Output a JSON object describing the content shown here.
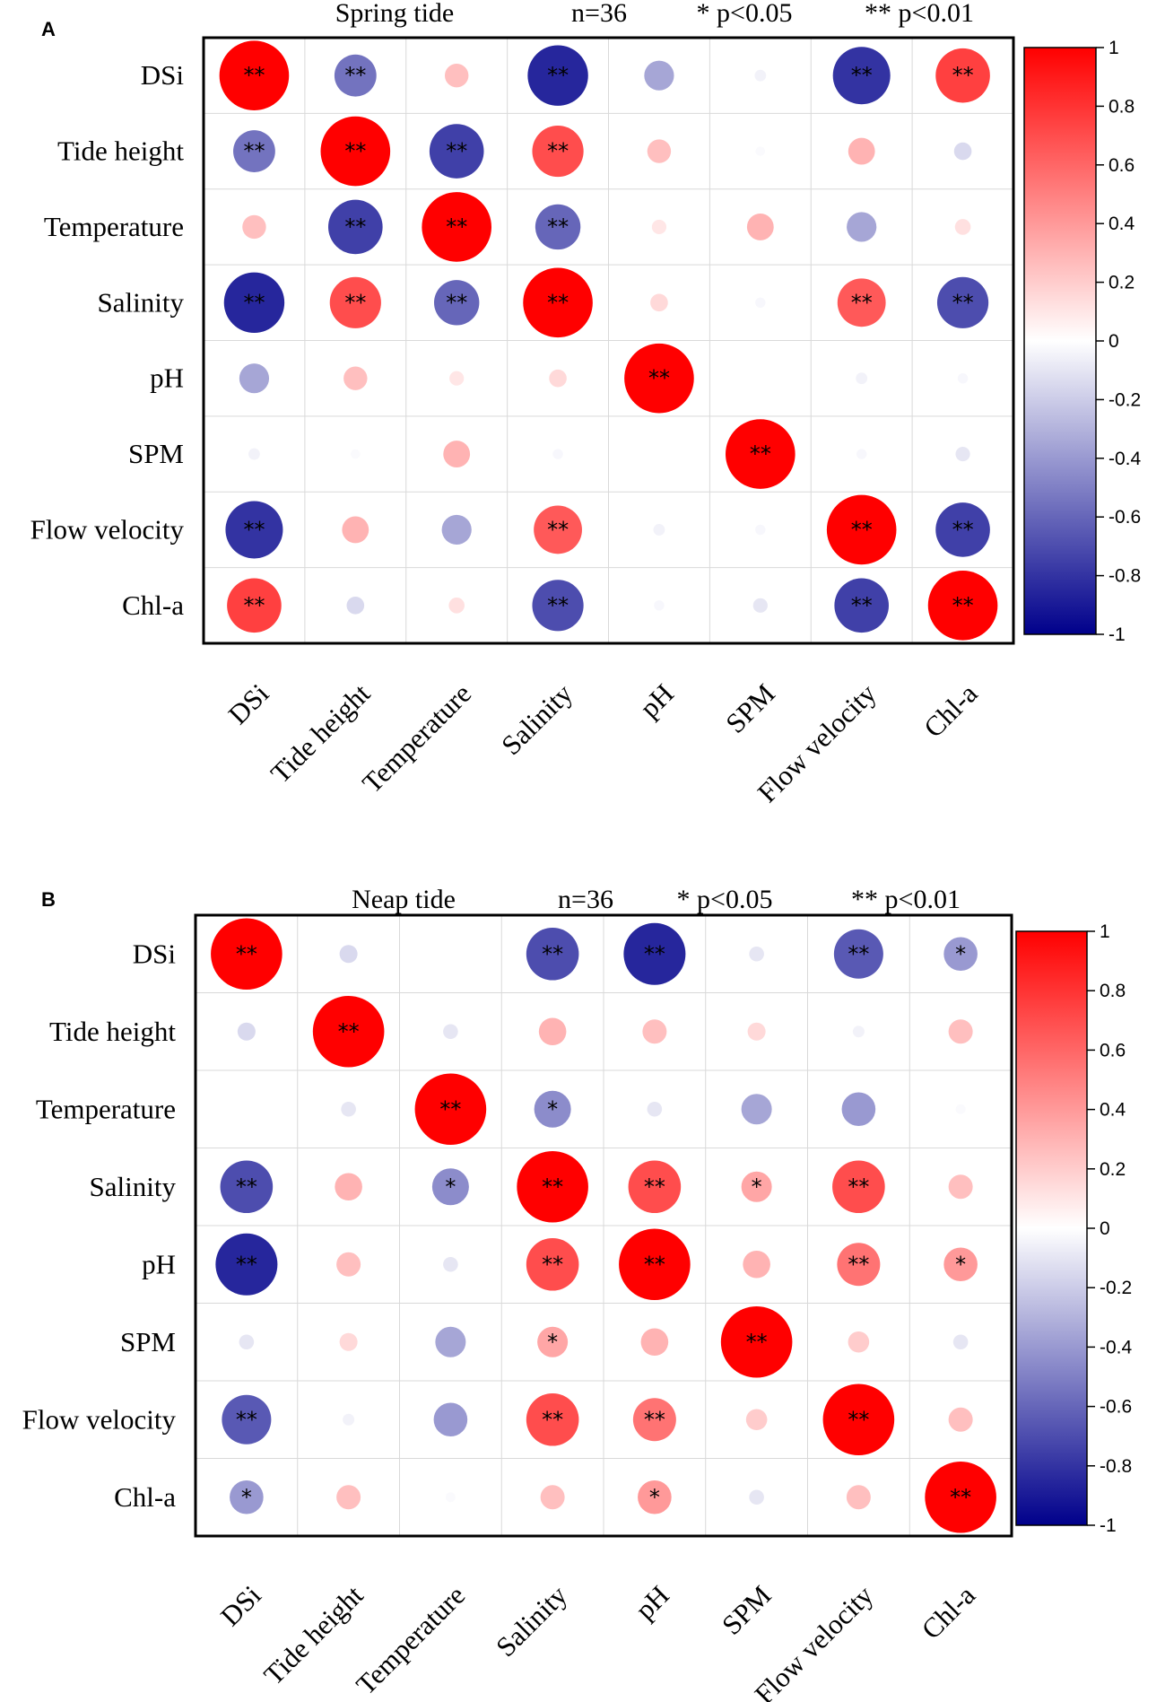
{
  "chart_data": [
    {
      "type": "heatmap",
      "panel_label": "A",
      "header": {
        "title": "Spring tide",
        "n_label": "n=36",
        "sig1_label": "* p<0.05",
        "sig2_label": "** p<0.01"
      },
      "variables": [
        "DSi",
        "Tide height",
        "Temperature",
        "Salinity",
        "pH",
        "SPM",
        "Flow velocity",
        "Chl-a"
      ],
      "matrix": [
        [
          1.0,
          -0.55,
          0.25,
          -0.85,
          -0.35,
          -0.05,
          -0.8,
          0.75
        ],
        [
          -0.55,
          1.0,
          -0.75,
          0.7,
          0.25,
          -0.02,
          0.3,
          -0.15
        ],
        [
          0.25,
          -0.75,
          1.0,
          -0.6,
          0.1,
          0.3,
          -0.35,
          0.12
        ],
        [
          -0.85,
          0.7,
          -0.6,
          1.0,
          0.15,
          -0.03,
          0.65,
          -0.7
        ],
        [
          -0.35,
          0.25,
          0.1,
          0.15,
          1.0,
          0.0,
          -0.05,
          -0.03
        ],
        [
          -0.05,
          -0.02,
          0.3,
          -0.03,
          0.0,
          1.0,
          -0.03,
          -0.1
        ],
        [
          -0.8,
          0.3,
          -0.35,
          0.65,
          -0.05,
          -0.03,
          1.0,
          -0.75
        ],
        [
          0.75,
          -0.15,
          0.12,
          -0.7,
          -0.03,
          -0.1,
          -0.75,
          1.0
        ]
      ],
      "significance": [
        [
          "**",
          "**",
          "",
          "**",
          "",
          "",
          "**",
          "**"
        ],
        [
          "**",
          "**",
          "**",
          "**",
          "",
          "",
          "",
          ""
        ],
        [
          "",
          "**",
          "**",
          "**",
          "",
          "",
          "",
          ""
        ],
        [
          "**",
          "**",
          "**",
          "**",
          "",
          "",
          "**",
          "**"
        ],
        [
          "",
          "",
          "",
          "",
          "**",
          "",
          "",
          ""
        ],
        [
          "",
          "",
          "",
          "",
          "",
          "**",
          "",
          ""
        ],
        [
          "**",
          "",
          "",
          "**",
          "",
          "",
          "**",
          "**"
        ],
        [
          "**",
          "",
          "",
          "**",
          "",
          "",
          "**",
          "**"
        ]
      ],
      "colorbar": {
        "min": -1,
        "max": 1,
        "ticks": [
          "1",
          "0.8",
          "0.6",
          "0.4",
          "0.2",
          "0",
          "-0.2",
          "-0.4",
          "-0.6",
          "-0.8",
          "-1"
        ]
      }
    },
    {
      "type": "heatmap",
      "panel_label": "B",
      "header": {
        "title": "Neap tide",
        "n_label": "n=36",
        "sig1_label": "* p<0.05",
        "sig2_label": "** p<0.01"
      },
      "variables": [
        "DSi",
        "Tide height",
        "Temperature",
        "Salinity",
        "pH",
        "SPM",
        "Flow velocity",
        "Chl-a"
      ],
      "matrix": [
        [
          1.0,
          -0.15,
          0.0,
          -0.7,
          -0.85,
          -0.1,
          -0.65,
          -0.4
        ],
        [
          -0.15,
          1.0,
          -0.1,
          0.3,
          0.25,
          0.15,
          -0.05,
          0.25
        ],
        [
          0.0,
          -0.1,
          1.0,
          -0.45,
          -0.1,
          -0.35,
          -0.4,
          -0.02
        ],
        [
          -0.7,
          0.3,
          -0.45,
          1.0,
          0.7,
          0.35,
          0.7,
          0.25
        ],
        [
          -0.85,
          0.25,
          -0.1,
          0.7,
          1.0,
          0.3,
          0.55,
          0.4
        ],
        [
          -0.1,
          0.15,
          -0.35,
          0.35,
          0.3,
          1.0,
          0.2,
          -0.1
        ],
        [
          -0.65,
          -0.05,
          -0.4,
          0.7,
          0.55,
          0.2,
          1.0,
          0.25
        ],
        [
          -0.4,
          0.25,
          -0.02,
          0.25,
          0.4,
          -0.1,
          0.25,
          1.0
        ]
      ],
      "significance": [
        [
          "**",
          "",
          "",
          "**",
          "**",
          "",
          "**",
          "*"
        ],
        [
          "",
          "**",
          "",
          "",
          "",
          "",
          "",
          ""
        ],
        [
          "",
          "",
          "**",
          "*",
          "",
          "",
          "",
          ""
        ],
        [
          "**",
          "",
          "*",
          "**",
          "**",
          "*",
          "**",
          ""
        ],
        [
          "**",
          "",
          "",
          "**",
          "**",
          "",
          "**",
          "*"
        ],
        [
          "",
          "",
          "",
          "*",
          "",
          "**",
          "",
          ""
        ],
        [
          "**",
          "",
          "",
          "**",
          "**",
          "",
          "**",
          ""
        ],
        [
          "*",
          "",
          "",
          "",
          "*",
          "",
          "",
          "**"
        ]
      ],
      "colorbar": {
        "min": -1,
        "max": 1,
        "ticks": [
          "1",
          "0.8",
          "0.6",
          "0.4",
          "0.2",
          "0",
          "-0.2",
          "-0.4",
          "-0.6",
          "-0.8",
          "-1"
        ]
      }
    }
  ],
  "colors": {
    "positive": "#ff0000",
    "neutral": "#ffffff",
    "negative": "#00008b",
    "frame": "#000000",
    "grid": "#d9d9d9"
  }
}
